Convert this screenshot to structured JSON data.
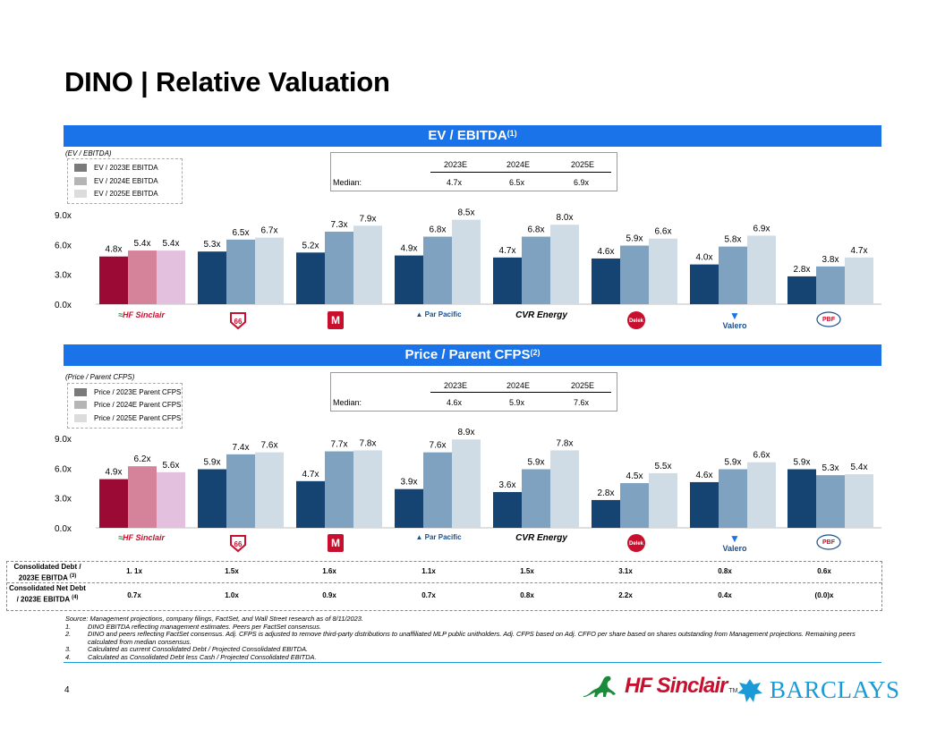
{
  "page": {
    "title": "DINO | Relative Valuation",
    "page_number": "4"
  },
  "colors": {
    "dino_2023": "#9b0a35",
    "dino_2024": "#d4839b",
    "dino_2025": "#e3c0de",
    "peer_2023": "#154473",
    "peer_2024": "#7fa2c1",
    "peer_2025": "#cfdce6",
    "band": "#1a73e8",
    "rule": "#1a9ad6"
  },
  "icons": [
    "hf-sinclair-logo",
    "phillips-66-logo",
    "marathon-logo",
    "par-pacific-logo",
    "cvr-energy-logo",
    "delek-logo",
    "valero-logo",
    "pbf-logo",
    "barclays-eagle-logo"
  ],
  "ev_section": {
    "band_title": "EV / EBITDA",
    "band_sup": "(1)",
    "sublabel": "(EV / EBITDA)",
    "legend": [
      "EV / 2023E EBITDA",
      "EV / 2024E EBITDA",
      "EV / 2025E EBITDA"
    ],
    "median": {
      "headers": [
        "2023E",
        "2024E",
        "2025E"
      ],
      "label": "Median:",
      "values": [
        "4.7x",
        "6.5x",
        "6.9x"
      ]
    }
  },
  "cfps_section": {
    "band_title": "Price / Parent CFPS",
    "band_sup": "(2)",
    "sublabel": "(Price / Parent CFPS)",
    "legend": [
      "Price / 2023E Parent CFPS",
      "Price / 2024E Parent CFPS",
      "Price / 2025E Parent CFPS"
    ],
    "median": {
      "headers": [
        "2023E",
        "2024E",
        "2025E"
      ],
      "label": "Median:",
      "values": [
        "4.6x",
        "5.9x",
        "7.6x"
      ]
    }
  },
  "logos": [
    "HF Sinclair",
    "PHILLIPS 66",
    "MARATHON",
    "Par Pacific",
    "CVR Energy",
    "Delek",
    "Valero",
    "PBF"
  ],
  "chart_data": [
    {
      "type": "bar",
      "title": "EV / EBITDA",
      "categories": [
        "HF Sinclair",
        "Phillips 66",
        "Marathon",
        "Par Pacific",
        "CVR Energy",
        "Delek",
        "Valero",
        "PBF"
      ],
      "series": [
        {
          "name": "EV / 2023E EBITDA",
          "values": [
            4.8,
            5.3,
            5.2,
            4.9,
            4.7,
            4.6,
            4.0,
            2.8
          ]
        },
        {
          "name": "EV / 2024E EBITDA",
          "values": [
            5.4,
            6.5,
            7.3,
            6.8,
            6.8,
            5.9,
            5.8,
            3.8
          ]
        },
        {
          "name": "EV / 2025E EBITDA",
          "values": [
            5.4,
            6.7,
            7.9,
            8.5,
            8.0,
            6.6,
            6.9,
            4.7
          ]
        }
      ],
      "yticks": [
        "0.0x",
        "3.0x",
        "6.0x",
        "9.0x"
      ],
      "ylim": [
        0,
        9
      ]
    },
    {
      "type": "bar",
      "title": "Price / Parent CFPS",
      "categories": [
        "HF Sinclair",
        "Phillips 66",
        "Marathon",
        "Par Pacific",
        "CVR Energy",
        "Delek",
        "Valero",
        "PBF"
      ],
      "series": [
        {
          "name": "Price / 2023E Parent CFPS",
          "values": [
            4.9,
            5.9,
            4.7,
            3.9,
            3.6,
            2.8,
            4.6,
            5.9
          ]
        },
        {
          "name": "Price / 2024E Parent CFPS",
          "values": [
            6.2,
            7.4,
            7.7,
            7.6,
            5.9,
            4.5,
            5.9,
            5.3
          ]
        },
        {
          "name": "Price / 2025E Parent CFPS",
          "values": [
            5.6,
            7.6,
            7.8,
            8.9,
            7.8,
            5.5,
            6.6,
            5.4
          ]
        }
      ],
      "yticks": [
        "0.0x",
        "3.0x",
        "6.0x",
        "9.0x"
      ],
      "ylim": [
        0,
        9
      ]
    }
  ],
  "debt_table": {
    "row1_label": "Consolidated Debt / 2023E EBITDA",
    "row1_sup": "(3)",
    "row1_values": [
      "1. 1x",
      "1.5x",
      "1.6x",
      "1.1x",
      "1.5x",
      "3.1x",
      "0.8x",
      "0.6x"
    ],
    "row2_label": "Consolidated Net Debt / 2023E EBITDA",
    "row2_sup": "(4)",
    "row2_values": [
      "0.7x",
      "1.0x",
      "0.9x",
      "0.7x",
      "0.8x",
      "2.2x",
      "0.4x",
      "(0.0)x"
    ]
  },
  "footnotes": {
    "source": "Source: Management projections, company filings, FactSet, and Wall Street research as of 8/11/2023.",
    "items": [
      {
        "num": "1.",
        "text": "DINO EBITDA reflecting management estimates. Peers per FactSet consensus."
      },
      {
        "num": "2.",
        "text": "DINO and peers reflecting FactSet consensus. Adj. CFPS is adjusted to remove third-party distributions to unaffiliated MLP public unitholders. Adj. CFPS based on Adj. CFFO per share based on shares outstanding from Management projections. Remaining peers calculated from median consensus."
      },
      {
        "num": "3.",
        "text": "Calculated as current Consolidated Debt / Projected Consolidated EBITDA."
      },
      {
        "num": "4.",
        "text": "Calculated as Consolidated Debt less Cash / Projected Consolidated EBITDA."
      }
    ]
  },
  "footer_logos": {
    "hf": "HF Sinclair",
    "tm": "TM",
    "barclays": "BARCLAYS"
  }
}
